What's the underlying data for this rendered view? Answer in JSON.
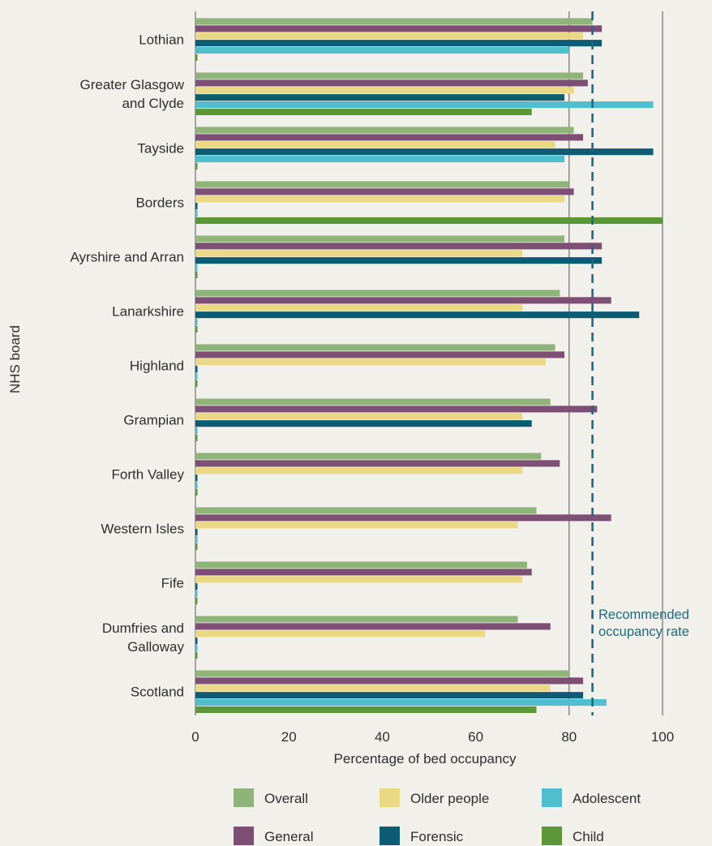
{
  "chart_data": {
    "type": "bar",
    "orientation": "horizontal",
    "title": "",
    "xlabel": "Percentage of bed occupancy",
    "ylabel": "NHS board",
    "xlim": [
      0,
      100
    ],
    "xticks": [
      0,
      20,
      40,
      60,
      80,
      100
    ],
    "grid": "vertical gridlines at x = 0, 80 and 100",
    "legend_position": "bottom",
    "categories": [
      "Lothian",
      "Greater Glasgow and Clyde",
      "Tayside",
      "Borders",
      "Ayrshire and Arran",
      "Lanarkshire",
      "Highland",
      "Grampian",
      "Forth Valley",
      "Western Isles",
      "Fife",
      "Dumfries and Galloway",
      "Scotland"
    ],
    "category_display": [
      [
        "Lothian"
      ],
      [
        "Greater Glasgow",
        "and Clyde"
      ],
      [
        "Tayside"
      ],
      [
        "Borders"
      ],
      [
        "Ayrshire and Arran"
      ],
      [
        "Lanarkshire"
      ],
      [
        "Highland"
      ],
      [
        "Grampian"
      ],
      [
        "Forth Valley"
      ],
      [
        "Western Isles"
      ],
      [
        "Fife"
      ],
      [
        "Dumfries and",
        "Galloway"
      ],
      [
        "Scotland"
      ]
    ],
    "series": [
      {
        "name": "Overall",
        "color": "#8fb47a",
        "values": [
          85,
          83,
          81,
          80,
          79,
          78,
          77,
          76,
          74,
          73,
          71,
          69,
          80
        ]
      },
      {
        "name": "General",
        "color": "#7d4f74",
        "values": [
          87,
          84,
          83,
          81,
          87,
          89,
          79,
          86,
          78,
          89,
          72,
          76,
          83
        ]
      },
      {
        "name": "Older people",
        "color": "#ead982",
        "values": [
          83,
          81,
          77,
          79,
          70,
          70,
          75,
          70,
          70,
          69,
          70,
          62,
          76
        ]
      },
      {
        "name": "Forensic",
        "color": "#0c5d74",
        "values": [
          87,
          79,
          98,
          0,
          87,
          95,
          0,
          72,
          0,
          0,
          0,
          0,
          83
        ]
      },
      {
        "name": "Adolescent",
        "color": "#4fbecd",
        "values": [
          80,
          98,
          79,
          0,
          0,
          0,
          0,
          0,
          0,
          0,
          0,
          0,
          88
        ]
      },
      {
        "name": "Child",
        "color": "#5b9638",
        "values": [
          0,
          72,
          0,
          100,
          0,
          0,
          0,
          0,
          0,
          0,
          0,
          0,
          73
        ]
      }
    ],
    "reference_line": {
      "value": 85,
      "label_lines": [
        "Recommended",
        "occupancy rate"
      ],
      "color": "#1c6b80",
      "style": "dashed"
    }
  }
}
